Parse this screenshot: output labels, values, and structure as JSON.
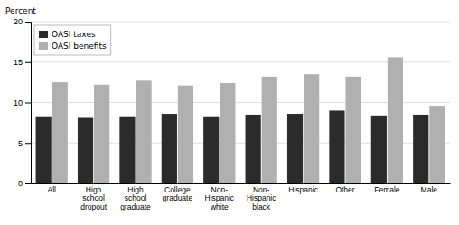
{
  "chart_data": {
    "type": "bar",
    "ylabel": "Percent",
    "categories": [
      "All",
      "High\nschool\ndropout",
      "High\nschool\ngraduate",
      "College\ngraduate",
      "Non-\nHispanic\nwhite",
      "Non-\nHispanic\nblack",
      "Hispanic",
      "Other",
      "Female",
      "Male"
    ],
    "series": [
      {
        "name": "OASI taxes",
        "color": "#2b2b2b",
        "values": [
          8.3,
          8.1,
          8.3,
          8.6,
          8.3,
          8.5,
          8.6,
          9.0,
          8.4,
          8.5
        ]
      },
      {
        "name": "OASI benefits",
        "color": "#b0b0b0",
        "values": [
          12.5,
          12.2,
          12.7,
          12.1,
          12.4,
          13.2,
          13.5,
          13.2,
          15.6,
          9.6
        ]
      }
    ],
    "ylim": [
      0,
      20
    ],
    "yticks": [
      0,
      5,
      10,
      15,
      20
    ],
    "grid": true,
    "legend": "upper left"
  }
}
